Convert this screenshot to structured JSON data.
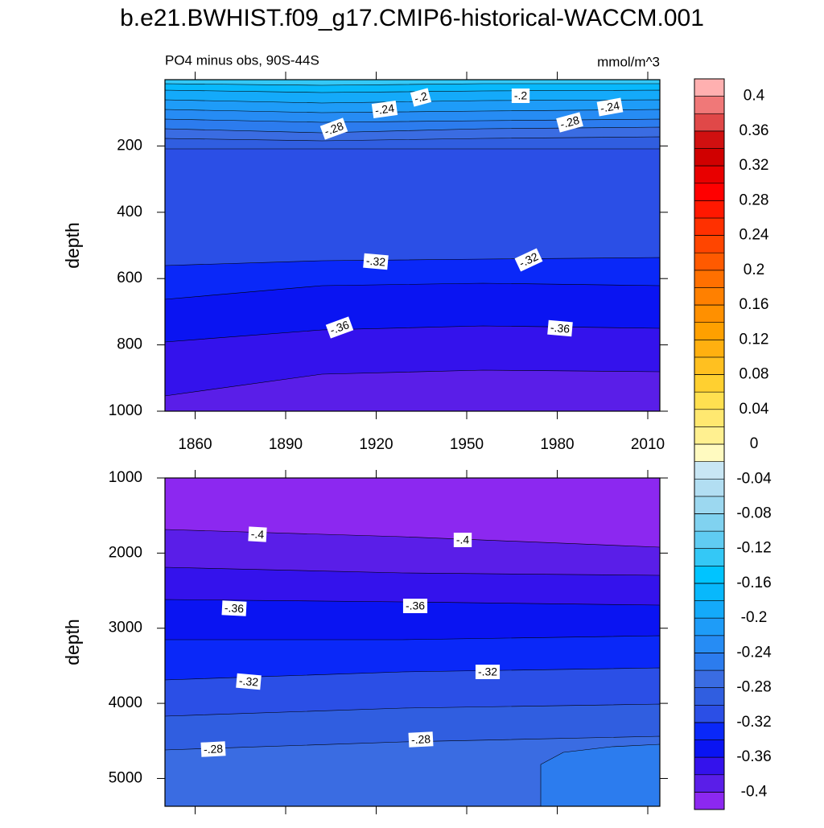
{
  "title": "b.e21.BWHIST.f09_g17.CMIP6-historical-WACCM.001",
  "chart_data": [
    {
      "type": "contour",
      "subtitle_left": "PO4 minus obs, 90S-44S",
      "subtitle_right": "mmol/m^3",
      "ylabel": "depth",
      "xlim": [
        1850,
        2014
      ],
      "xticks": [
        1860,
        1890,
        1920,
        1950,
        1980,
        2010
      ],
      "ylim": [
        1000,
        0
      ],
      "yticks": [
        200,
        400,
        600,
        800,
        1000
      ],
      "contour_labels": [
        {
          "value": -0.2,
          "label": "-.2"
        },
        {
          "value": -0.2,
          "label": "-.2"
        },
        {
          "value": -0.24,
          "label": "-.24"
        },
        {
          "value": -0.24,
          "label": "-.24"
        },
        {
          "value": -0.28,
          "label": "-.28"
        },
        {
          "value": -0.28,
          "label": "-.28"
        },
        {
          "value": -0.32,
          "label": "-.32"
        },
        {
          "value": -0.32,
          "label": "-.32"
        },
        {
          "value": -0.36,
          "label": "-.36"
        },
        {
          "value": -0.36,
          "label": "-.36"
        }
      ],
      "colorbar": {
        "ticks": [
          -0.4,
          -0.36,
          -0.32,
          -0.28,
          -0.24,
          -0.2,
          -0.16,
          -0.12,
          -0.08,
          -0.04,
          0,
          0.04,
          0.08,
          0.12,
          0.16,
          0.2,
          0.24,
          0.28,
          0.32,
          0.36,
          0.4
        ],
        "colors": [
          "#8c28f0",
          "#5a1ee8",
          "#3412ec",
          "#0a14f2",
          "#0a28f8",
          "#2b4fe6",
          "#305ee0",
          "#3a6ce2",
          "#2c7cee",
          "#268cf4",
          "#1e9cf8",
          "#14aafa",
          "#08b8fc",
          "#00c4ff",
          "#34c8f6",
          "#60ccf2",
          "#80d2f0",
          "#9cd8f0",
          "#b2def2",
          "#c8e6f4",
          "#fffac0",
          "#fff090",
          "#ffe870",
          "#ffe050",
          "#ffd030",
          "#ffc020",
          "#ffb010",
          "#ffa000",
          "#ff9000",
          "#ff8000",
          "#ff7000",
          "#ff5a00",
          "#ff4500",
          "#ff3000",
          "#ff1800",
          "#ff0000",
          "#e80000",
          "#d00000",
          "#d01010",
          "#e04848",
          "#f07878",
          "#ffb0b0"
        ]
      }
    },
    {
      "type": "contour",
      "ylabel": "depth",
      "xlim": [
        1850,
        2014
      ],
      "xticks": [
        1860,
        1890,
        1920,
        1950,
        1980,
        2010
      ],
      "ylim": [
        5370,
        1000
      ],
      "yticks": [
        1000,
        2000,
        3000,
        4000,
        5000
      ],
      "contour_labels": [
        {
          "value": -0.4,
          "label": "-.4"
        },
        {
          "value": -0.4,
          "label": "-.4"
        },
        {
          "value": -0.36,
          "label": "-.36"
        },
        {
          "value": -0.36,
          "label": "-.36"
        },
        {
          "value": -0.32,
          "label": "-.32"
        },
        {
          "value": -0.32,
          "label": "-.32"
        },
        {
          "value": -0.28,
          "label": "-.28"
        },
        {
          "value": -0.28,
          "label": "-.28"
        }
      ]
    }
  ]
}
